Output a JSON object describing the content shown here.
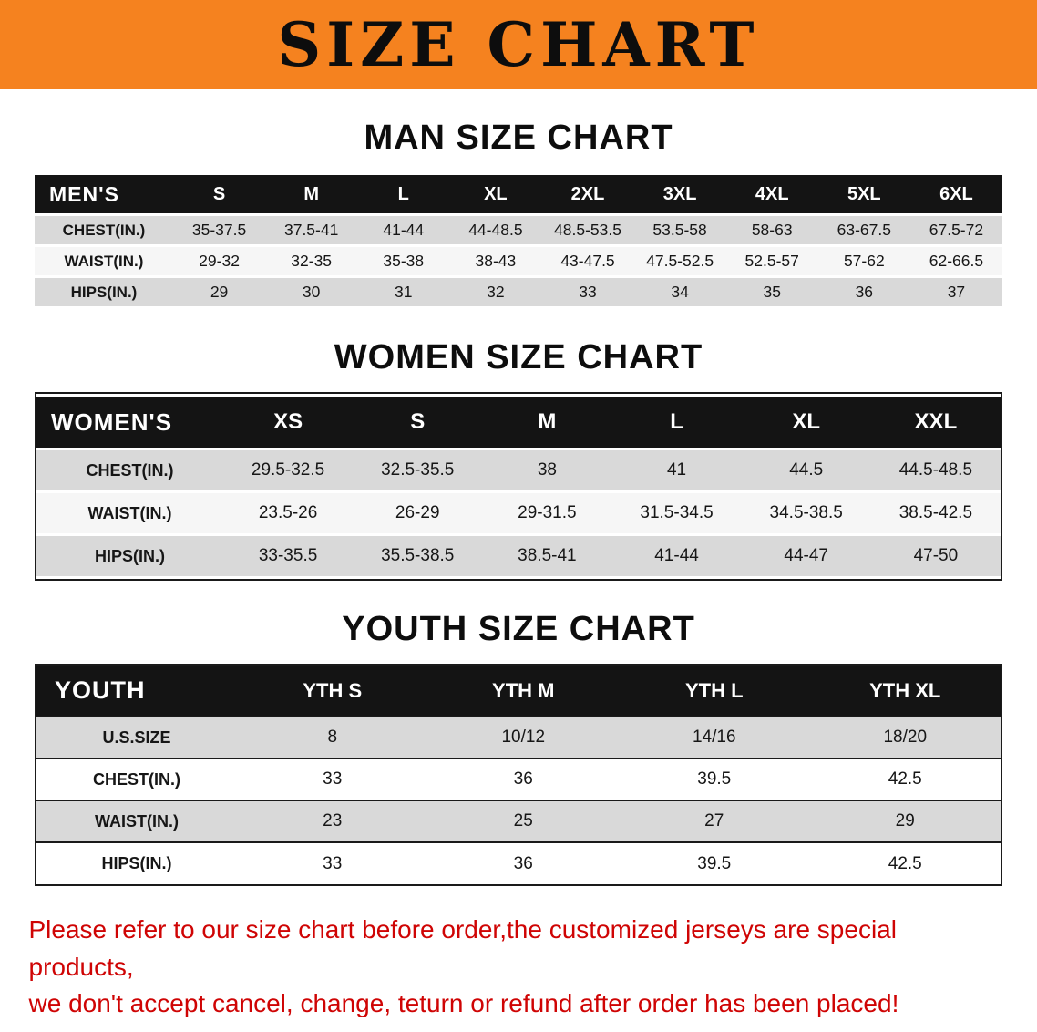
{
  "banner": {
    "title": "SIZE CHART"
  },
  "colors": {
    "banner_orange": "#F5821F",
    "header_black": "#141414",
    "row_gray": "#D9D9D9",
    "disclaimer_red": "#CF0404"
  },
  "sections": [
    {
      "heading": "MAN SIZE CHART",
      "table": {
        "title": "MEN'S",
        "columns": [
          "S",
          "M",
          "L",
          "XL",
          "2XL",
          "3XL",
          "4XL",
          "5XL",
          "6XL"
        ],
        "rows": [
          {
            "label": "CHEST(IN.)",
            "values": [
              "35-37.5",
              "37.5-41",
              "41-44",
              "44-48.5",
              "48.5-53.5",
              "53.5-58",
              "58-63",
              "63-67.5",
              "67.5-72"
            ]
          },
          {
            "label": "WAIST(IN.)",
            "values": [
              "29-32",
              "32-35",
              "35-38",
              "38-43",
              "43-47.5",
              "47.5-52.5",
              "52.5-57",
              "57-62",
              "62-66.5"
            ]
          },
          {
            "label": "HIPS(IN.)",
            "values": [
              "29",
              "30",
              "31",
              "32",
              "33",
              "34",
              "35",
              "36",
              "37"
            ]
          }
        ]
      }
    },
    {
      "heading": "WOMEN SIZE CHART",
      "table": {
        "title": "WOMEN'S",
        "columns": [
          "XS",
          "S",
          "M",
          "L",
          "XL",
          "XXL"
        ],
        "rows": [
          {
            "label": "CHEST(IN.)",
            "values": [
              "29.5-32.5",
              "32.5-35.5",
              "38",
              "41",
              "44.5",
              "44.5-48.5"
            ]
          },
          {
            "label": "WAIST(IN.)",
            "values": [
              "23.5-26",
              "26-29",
              "29-31.5",
              "31.5-34.5",
              "34.5-38.5",
              "38.5-42.5"
            ]
          },
          {
            "label": "HIPS(IN.)",
            "values": [
              "33-35.5",
              "35.5-38.5",
              "38.5-41",
              "41-44",
              "44-47",
              "47-50"
            ]
          }
        ]
      }
    },
    {
      "heading": "YOUTH SIZE CHART",
      "table": {
        "title": "YOUTH",
        "columns": [
          "YTH S",
          "YTH M",
          "YTH L",
          "YTH XL"
        ],
        "rows": [
          {
            "label": "U.S.SIZE",
            "values": [
              "8",
              "10/12",
              "14/16",
              "18/20"
            ]
          },
          {
            "label": "CHEST(IN.)",
            "values": [
              "33",
              "36",
              "39.5",
              "42.5"
            ]
          },
          {
            "label": "WAIST(IN.)",
            "values": [
              "23",
              "25",
              "27",
              "29"
            ]
          },
          {
            "label": "HIPS(IN.)",
            "values": [
              "33",
              "36",
              "39.5",
              "42.5"
            ]
          }
        ]
      }
    }
  ],
  "disclaimer": {
    "lines": [
      "Please refer to our size chart before order,the customized jerseys are special products,",
      "we don't accept cancel, change, teturn or refund after order has been placed!"
    ]
  }
}
